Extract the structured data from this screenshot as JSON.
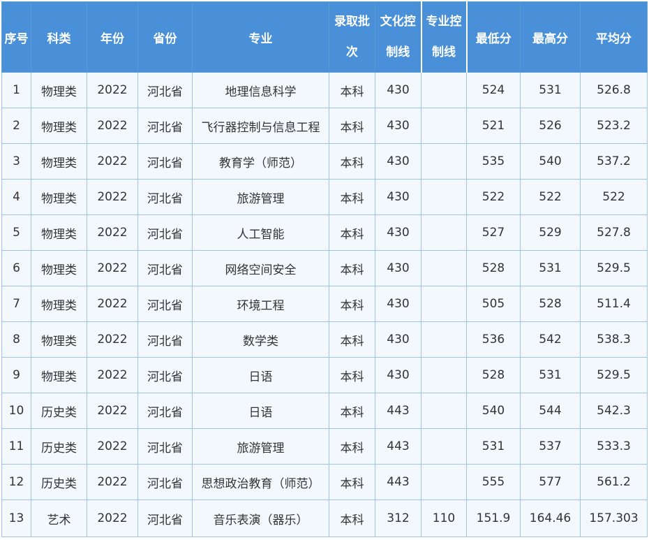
{
  "table": {
    "headers": [
      "序号",
      "科类",
      "年份",
      "省份",
      "专业",
      [
        "录取批",
        "次"
      ],
      [
        "文化控",
        "制线"
      ],
      [
        "专业控",
        "制线"
      ],
      "最低分",
      "最高分",
      "平均分"
    ],
    "rows": [
      [
        "1",
        "物理类",
        "2022",
        "河北省",
        "地理信息科学",
        "本科",
        "430",
        "",
        "524",
        "531",
        "526.8"
      ],
      [
        "2",
        "物理类",
        "2022",
        "河北省",
        "飞行器控制与信息工程",
        "本科",
        "430",
        "",
        "521",
        "526",
        "523.2"
      ],
      [
        "3",
        "物理类",
        "2022",
        "河北省",
        "教育学（师范）",
        "本科",
        "430",
        "",
        "535",
        "540",
        "537.2"
      ],
      [
        "4",
        "物理类",
        "2022",
        "河北省",
        "旅游管理",
        "本科",
        "430",
        "",
        "522",
        "522",
        "522"
      ],
      [
        "5",
        "物理类",
        "2022",
        "河北省",
        "人工智能",
        "本科",
        "430",
        "",
        "527",
        "529",
        "527.8"
      ],
      [
        "6",
        "物理类",
        "2022",
        "河北省",
        "网络空间安全",
        "本科",
        "430",
        "",
        "528",
        "531",
        "529.5"
      ],
      [
        "7",
        "物理类",
        "2022",
        "河北省",
        "环境工程",
        "本科",
        "430",
        "",
        "505",
        "528",
        "511.4"
      ],
      [
        "8",
        "物理类",
        "2022",
        "河北省",
        "数学类",
        "本科",
        "430",
        "",
        "536",
        "542",
        "538.3"
      ],
      [
        "9",
        "物理类",
        "2022",
        "河北省",
        "日语",
        "本科",
        "430",
        "",
        "528",
        "531",
        "529.5"
      ],
      [
        "10",
        "历史类",
        "2022",
        "河北省",
        "日语",
        "本科",
        "443",
        "",
        "540",
        "544",
        "542.3"
      ],
      [
        "11",
        "历史类",
        "2022",
        "河北省",
        "旅游管理",
        "本科",
        "443",
        "",
        "531",
        "537",
        "533.3"
      ],
      [
        "12",
        "历史类",
        "2022",
        "河北省",
        "思想政治教育（师范）",
        "本科",
        "443",
        "",
        "555",
        "577",
        "561.2"
      ],
      [
        "13",
        "艺术",
        "2022",
        "河北省",
        "音乐表演（器乐）",
        "本科",
        "312",
        "110",
        "151.9",
        "164.46",
        "157.303"
      ]
    ]
  }
}
